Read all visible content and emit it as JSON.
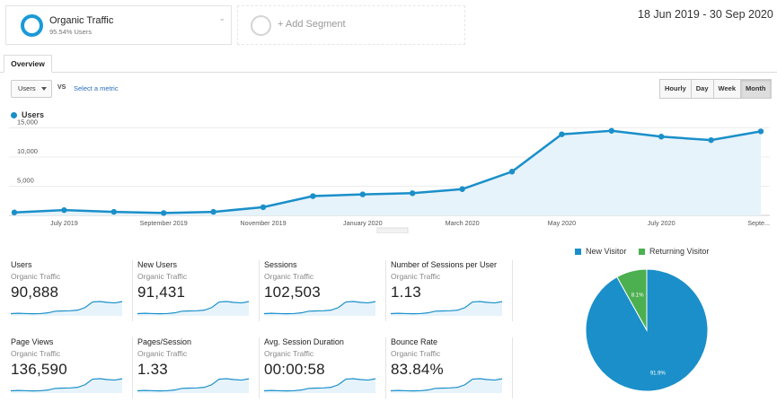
{
  "segments": {
    "primary": {
      "name": "Organic Traffic",
      "subtitle": "95.54% Users"
    },
    "add_label": "+ Add Segment"
  },
  "date_range": "18 Jun 2019 - 30 Sep 2020",
  "tabs": [
    {
      "label": "Overview"
    }
  ],
  "metric_selector": {
    "value": "Users",
    "vs_label": "VS",
    "select_metric_label": "Select a metric"
  },
  "granularity": {
    "options": [
      "Hourly",
      "Day",
      "Week",
      "Month"
    ],
    "active": "Month"
  },
  "icons": {
    "dropdown": "chevron-down-icon",
    "segment": "circle-ring-icon",
    "add": "plus-icon"
  },
  "colors": {
    "accent": "#1a8fc9",
    "returning": "#4caf50",
    "link": "#2a6ebb"
  },
  "chart_data": {
    "type": "area",
    "legend": "Users",
    "x_tick_labels": [
      "July 2019",
      "September 2019",
      "November 2019",
      "January 2020",
      "March 2020",
      "May 2020",
      "July 2020",
      "Septe..."
    ],
    "y_ticks": [
      "5,000",
      "10,000",
      "15,000"
    ],
    "ylim": [
      0,
      16000
    ],
    "points": [
      {
        "x": "Jun 2019",
        "y": 500
      },
      {
        "x": "Jul 2019",
        "y": 900
      },
      {
        "x": "Aug 2019",
        "y": 600
      },
      {
        "x": "Sep 2019",
        "y": 400
      },
      {
        "x": "Oct 2019",
        "y": 600
      },
      {
        "x": "Nov 2019",
        "y": 1400
      },
      {
        "x": "Dec 2019",
        "y": 3300
      },
      {
        "x": "Jan 2020",
        "y": 3600
      },
      {
        "x": "Feb 2020",
        "y": 3800
      },
      {
        "x": "Mar 2020",
        "y": 4500
      },
      {
        "x": "Apr 2020",
        "y": 7500
      },
      {
        "x": "May 2020",
        "y": 13900
      },
      {
        "x": "Jun 2020",
        "y": 14500
      },
      {
        "x": "Jul 2020",
        "y": 13500
      },
      {
        "x": "Aug 2020",
        "y": 12900
      },
      {
        "x": "Sep 2020",
        "y": 14400
      }
    ],
    "grid": true
  },
  "scorecards": [
    {
      "name": "Users",
      "segment": "Organic Traffic",
      "value": "90,888"
    },
    {
      "name": "New Users",
      "segment": "Organic Traffic",
      "value": "91,431"
    },
    {
      "name": "Sessions",
      "segment": "Organic Traffic",
      "value": "102,503"
    },
    {
      "name": "Number of Sessions per User",
      "segment": "Organic Traffic",
      "value": "1.13"
    },
    {
      "name": "Page Views",
      "segment": "Organic Traffic",
      "value": "136,590"
    },
    {
      "name": "Pages/Session",
      "segment": "Organic Traffic",
      "value": "1.33"
    },
    {
      "name": "Avg. Session Duration",
      "segment": "Organic Traffic",
      "value": "00:00:58"
    },
    {
      "name": "Bounce Rate",
      "segment": "Organic Traffic",
      "value": "83.84%"
    }
  ],
  "pie": {
    "type": "pie",
    "series": [
      {
        "name": "New Visitor",
        "value": 91.9,
        "label": "91.9%",
        "color": "#1a8fc9"
      },
      {
        "name": "Returning Visitor",
        "value": 8.1,
        "label": "8.1%",
        "color": "#4caf50"
      }
    ]
  }
}
